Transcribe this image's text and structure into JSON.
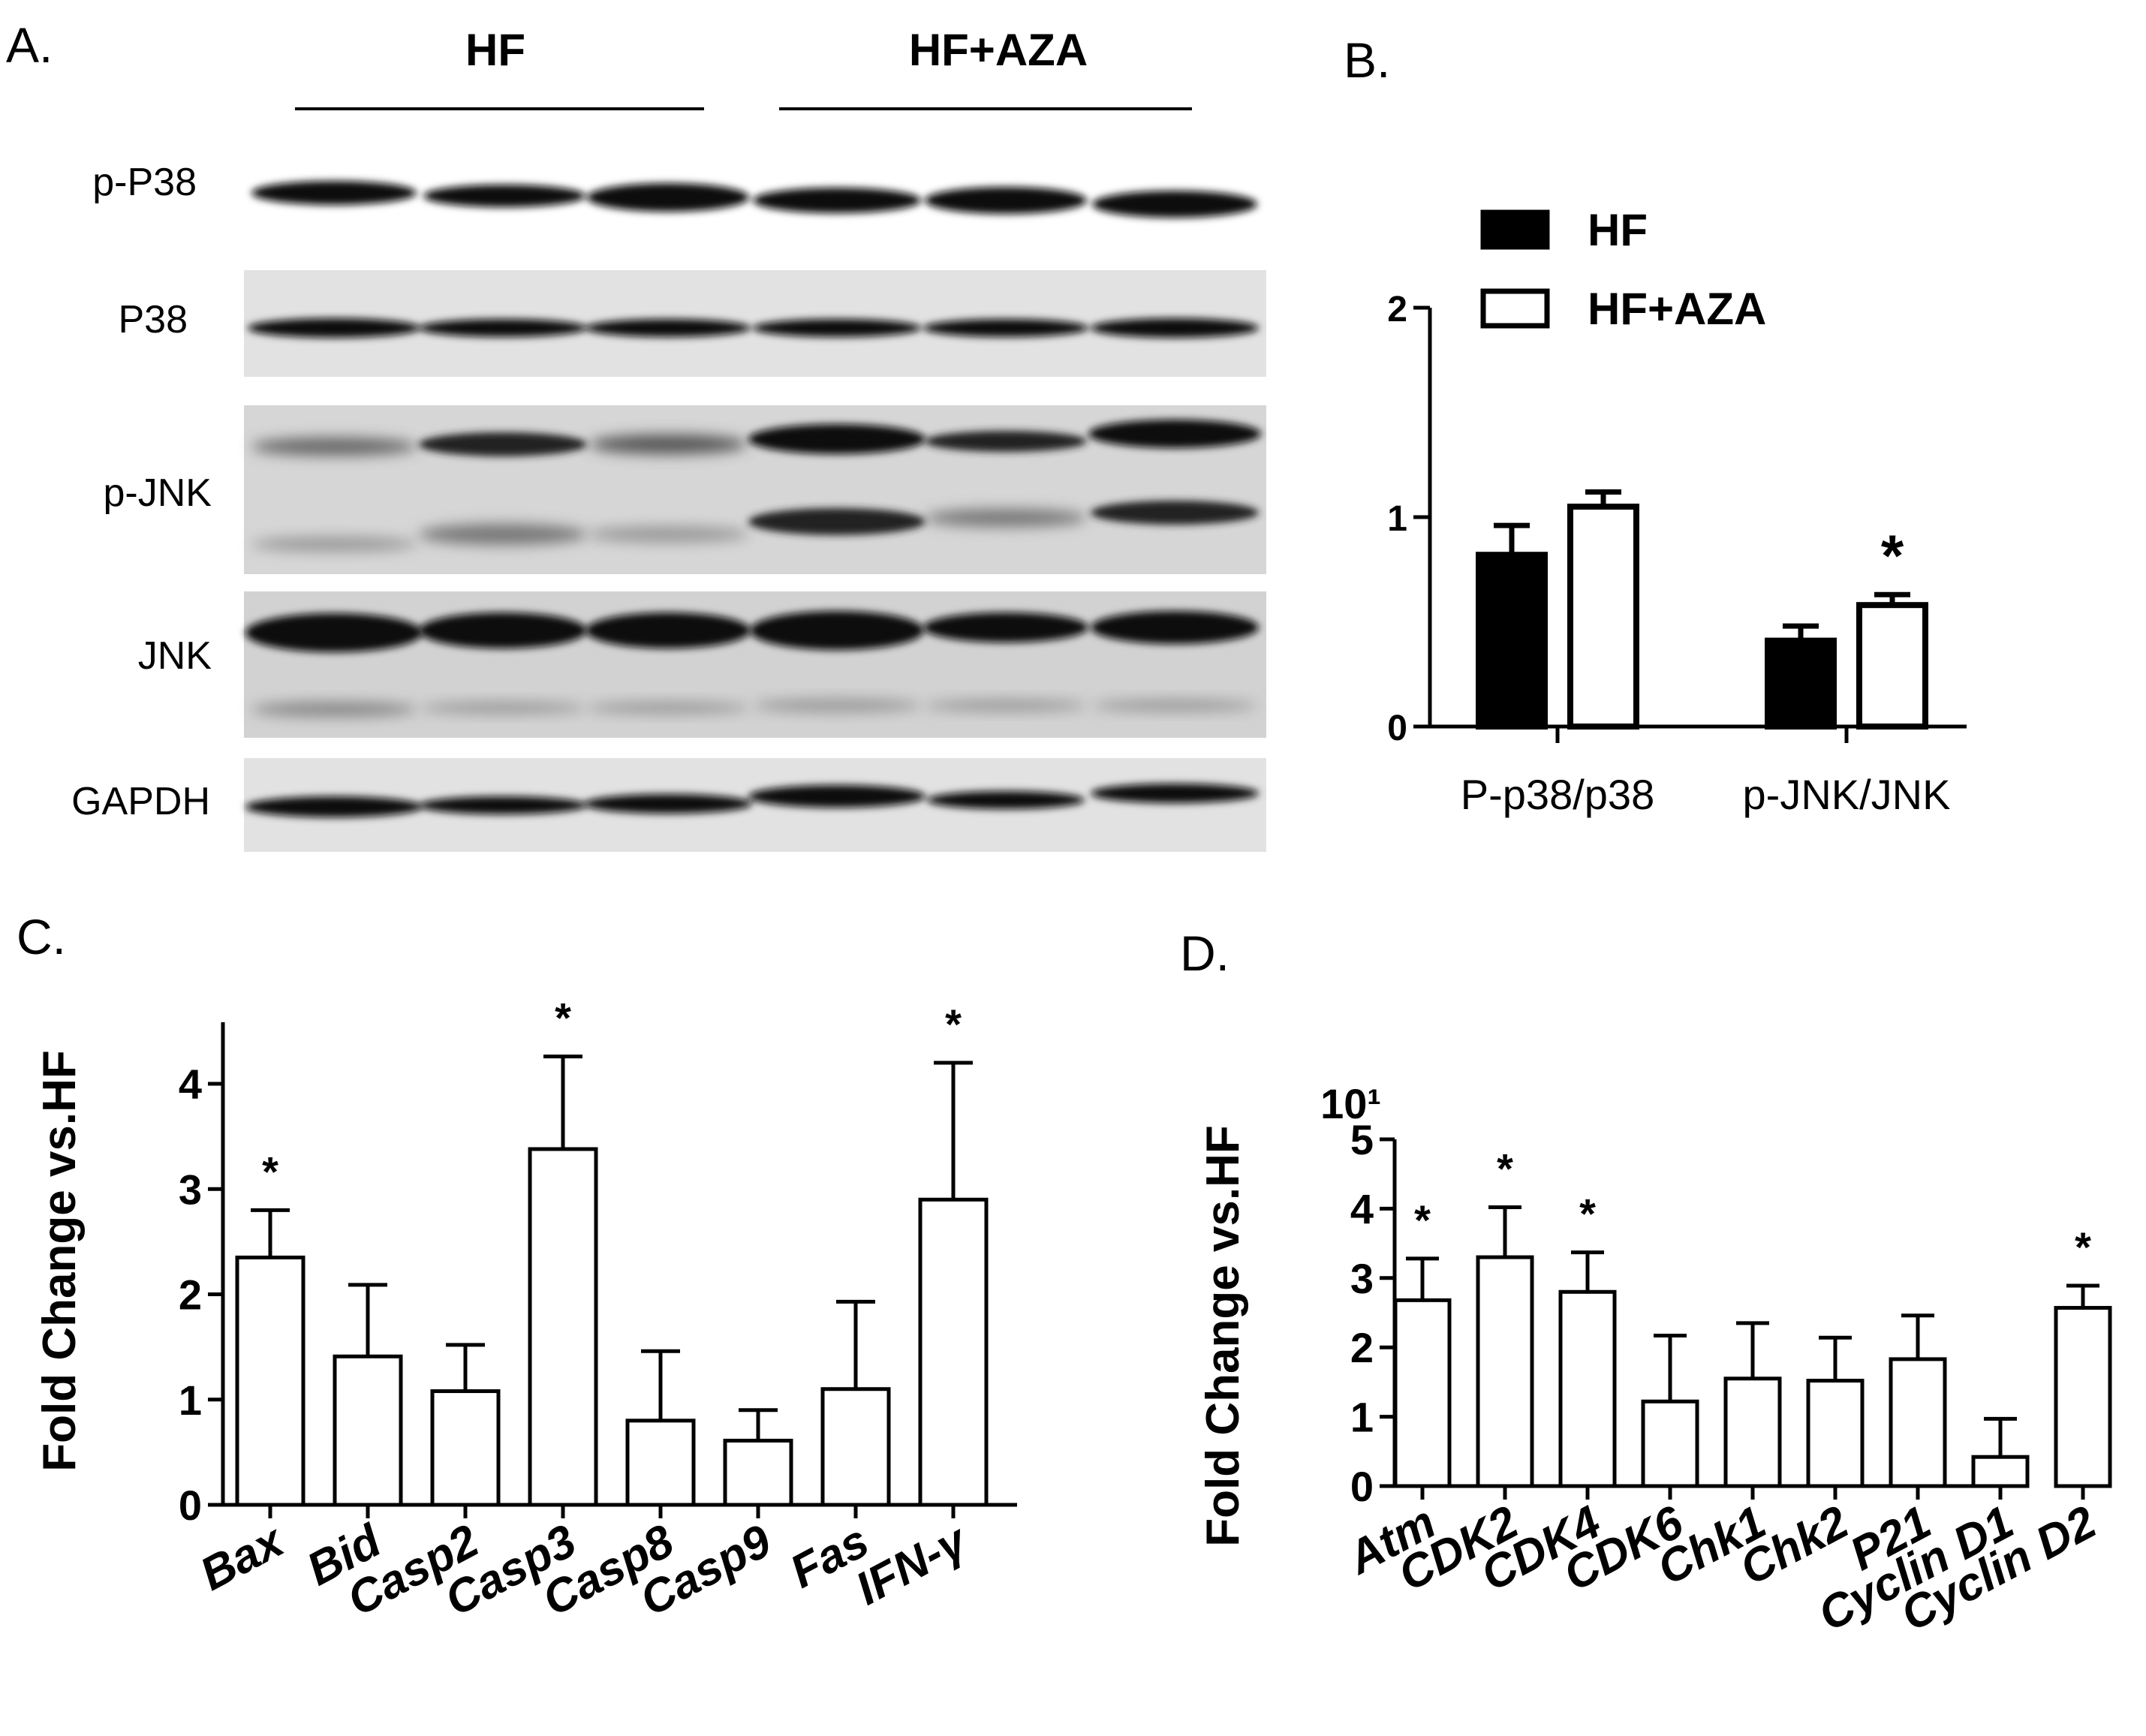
{
  "panels": {
    "a": "A.",
    "b": "B.",
    "c": "C.",
    "d": "D."
  },
  "blot": {
    "groups": [
      "HF",
      "HF+AZA"
    ],
    "rows": [
      "p-P38",
      "P38",
      "p-JNK",
      "JNK",
      "GAPDH"
    ],
    "colors": {
      "band": "#111111",
      "background": "#e4e4e4"
    }
  },
  "chart_data": [
    {
      "type": "bar",
      "panel": "B.",
      "categories": [
        "P-p38/p38",
        "p-JNK/JNK"
      ],
      "series": [
        {
          "name": "HF",
          "values": [
            0.82,
            0.41
          ],
          "errors": [
            0.14,
            0.07
          ],
          "fill": "#000000"
        },
        {
          "name": "HF+AZA",
          "values": [
            1.05,
            0.58
          ],
          "errors": [
            0.07,
            0.05
          ],
          "fill": "#ffffff"
        }
      ],
      "significance": [
        "",
        "*"
      ],
      "ylim": [
        0,
        2
      ],
      "yticks": [
        "0",
        "1",
        "2"
      ],
      "legend": "top-left"
    },
    {
      "type": "bar",
      "panel": "C.",
      "ylabel": "Fold Change vs.HF",
      "categories": [
        "Bax",
        "Bid",
        "Casp2",
        "Casp3",
        "Casp8",
        "Casp9",
        "Fas",
        "IFN-γ"
      ],
      "values": [
        2.35,
        1.41,
        1.08,
        3.38,
        0.8,
        0.61,
        1.1,
        2.9
      ],
      "errors": [
        0.45,
        0.68,
        0.44,
        0.88,
        0.66,
        0.29,
        0.83,
        1.3
      ],
      "significance": [
        "*",
        "",
        "",
        "*",
        "",
        "",
        "",
        "*"
      ],
      "ylim": [
        0,
        4.2
      ],
      "yticks": [
        "0",
        "1",
        "2",
        "3",
        "4"
      ]
    },
    {
      "type": "bar",
      "panel": "D.",
      "ylabel": "Fold Change vs.HF",
      "scale_label": "10¹",
      "categories": [
        "Atm",
        "CDK2",
        "CDK4",
        "CDK6",
        "Chk1",
        "Chk2",
        "P21",
        "Cyclin D1",
        "Cyclin D2"
      ],
      "values": [
        2.68,
        3.3,
        2.8,
        1.22,
        1.55,
        1.52,
        1.83,
        0.42,
        2.57
      ],
      "errors": [
        0.6,
        0.72,
        0.57,
        0.95,
        0.8,
        0.62,
        0.63,
        0.55,
        0.32
      ],
      "significance": [
        "*",
        "*",
        "*",
        "",
        "",
        "",
        "",
        "",
        "*"
      ],
      "ylim": [
        0,
        5
      ],
      "yticks": [
        "0",
        "1",
        "2",
        "3",
        "4",
        "5"
      ]
    }
  ]
}
